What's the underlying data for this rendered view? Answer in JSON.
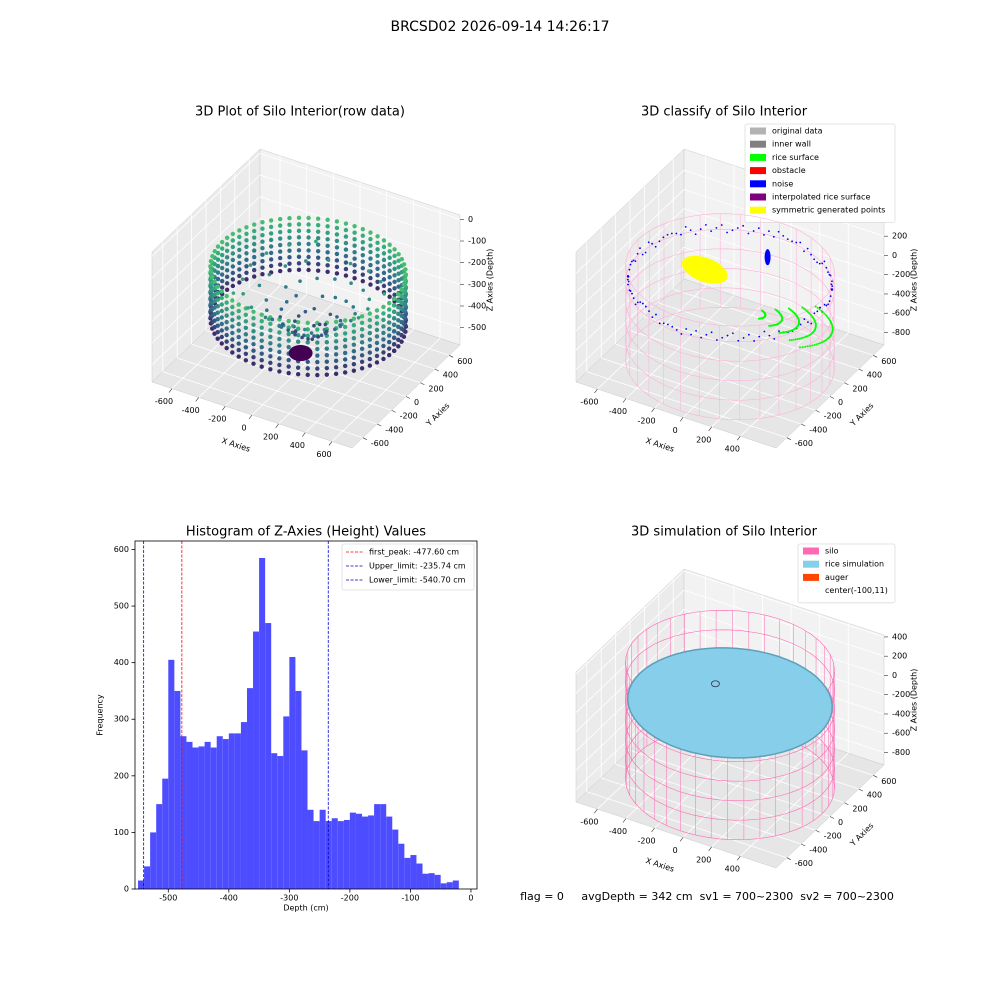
{
  "title": "BRCSD02 2026-09-14 14:26:17",
  "footer": "flag = 0     avgDepth = 342 cm  sv1 = 700~2300  sv2 = 700~2300",
  "chart_data": [
    {
      "type": "scatter3d",
      "title": "3D Plot of Silo Interior(row data)",
      "xlabel": "X Axies",
      "ylabel": "Y Axies",
      "zlabel": "Z Axies (Depth)",
      "xlim": [
        -750,
        750
      ],
      "ylim": [
        -750,
        750
      ],
      "zlim": [
        -580,
        20
      ],
      "xticks": [
        -600,
        -400,
        -200,
        0,
        200,
        400,
        600
      ],
      "yticks": [
        -600,
        -400,
        -200,
        0,
        200,
        400,
        600
      ],
      "zticks": [
        0,
        -100,
        -200,
        -300,
        -400,
        -500
      ]
    },
    {
      "type": "classify3d",
      "title": "3D classify of Silo Interior",
      "xlabel": "X Axies",
      "ylabel": "Y Axies",
      "zlabel": "Z Axies (Depth)",
      "xlim": [
        -750,
        650
      ],
      "ylim": [
        -750,
        750
      ],
      "zlim": [
        -930,
        420
      ],
      "xticks": [
        -600,
        -400,
        -200,
        0,
        200,
        400
      ],
      "yticks": [
        -600,
        -400,
        -200,
        0,
        200,
        400,
        600
      ],
      "zticks": [
        200,
        0,
        -200,
        -400,
        -600,
        -800
      ],
      "legend": [
        {
          "name": "original data",
          "color": "#b3b3b3"
        },
        {
          "name": "inner wall",
          "color": "#808080"
        },
        {
          "name": "rice surface",
          "color": "#00ff00"
        },
        {
          "name": "obstacle",
          "color": "#ff0000"
        },
        {
          "name": "noise",
          "color": "#0000ff"
        },
        {
          "name": "interpolated rice surface",
          "color": "#800080"
        },
        {
          "name": "symmetric generated points",
          "color": "#ffff00"
        }
      ]
    },
    {
      "type": "histogram",
      "title": "Histogram of Z-Axies (Height) Values",
      "xlabel": "Depth (cm)",
      "ylabel": "Frequency",
      "color": "#4d4dff",
      "bins": [
        -550,
        -540,
        -530,
        -520,
        -510,
        -500,
        -490,
        -480,
        -470,
        -460,
        -450,
        -440,
        -430,
        -420,
        -410,
        -400,
        -390,
        -380,
        -370,
        -360,
        -350,
        -340,
        -330,
        -320,
        -310,
        -300,
        -290,
        -280,
        -270,
        -260,
        -250,
        -240,
        -230,
        -220,
        -210,
        -200,
        -190,
        -180,
        -170,
        -160,
        -150,
        -140,
        -130,
        -120,
        -110,
        -100,
        -90,
        -80,
        -70,
        -60,
        -50,
        -40,
        -30,
        -20
      ],
      "values": [
        15,
        40,
        100,
        150,
        195,
        405,
        350,
        270,
        260,
        250,
        252,
        260,
        250,
        270,
        265,
        275,
        275,
        295,
        355,
        455,
        585,
        470,
        240,
        235,
        305,
        410,
        350,
        245,
        140,
        120,
        140,
        120,
        125,
        120,
        122,
        135,
        133,
        128,
        130,
        150,
        150,
        128,
        105,
        80,
        55,
        60,
        45,
        27,
        28,
        25,
        10,
        12,
        15
      ],
      "xlim": [
        -555,
        10
      ],
      "ylim": [
        0,
        615
      ],
      "xticks": [
        -500,
        -400,
        -300,
        -200,
        -100,
        0
      ],
      "yticks": [
        0,
        100,
        200,
        300,
        400,
        500,
        600
      ],
      "lines": [
        {
          "name": "first_peak: -477.60 cm",
          "value": -477.6,
          "color": "#ff0000"
        },
        {
          "name": "Upper_limit: -235.74 cm",
          "value": -235.74,
          "color": "#0000cc"
        },
        {
          "name": "Lower_limit: -540.70 cm",
          "value": -540.7,
          "color": "#0000cc"
        }
      ]
    },
    {
      "type": "surface3d",
      "title": "3D simulation of Silo Interior",
      "xlabel": "X Axies",
      "ylabel": "Y Axies",
      "zlabel": "Z Axies (Depth)",
      "xlim": [
        -750,
        650
      ],
      "ylim": [
        -750,
        750
      ],
      "zlim": [
        -930,
        420
      ],
      "xticks": [
        -600,
        -400,
        -200,
        0,
        200,
        400
      ],
      "yticks": [
        -600,
        -400,
        -200,
        0,
        200,
        400,
        600
      ],
      "zticks": [
        400,
        200,
        0,
        -200,
        -400,
        -600,
        -800
      ],
      "legend": [
        {
          "name": "silo",
          "color": "#ff69b4"
        },
        {
          "name": "rice simulation",
          "color": "#87ceeb"
        },
        {
          "name": "auger",
          "color": "#ff4500"
        },
        {
          "name": "center(-100,11)",
          "color": "#ffffff"
        }
      ]
    }
  ]
}
